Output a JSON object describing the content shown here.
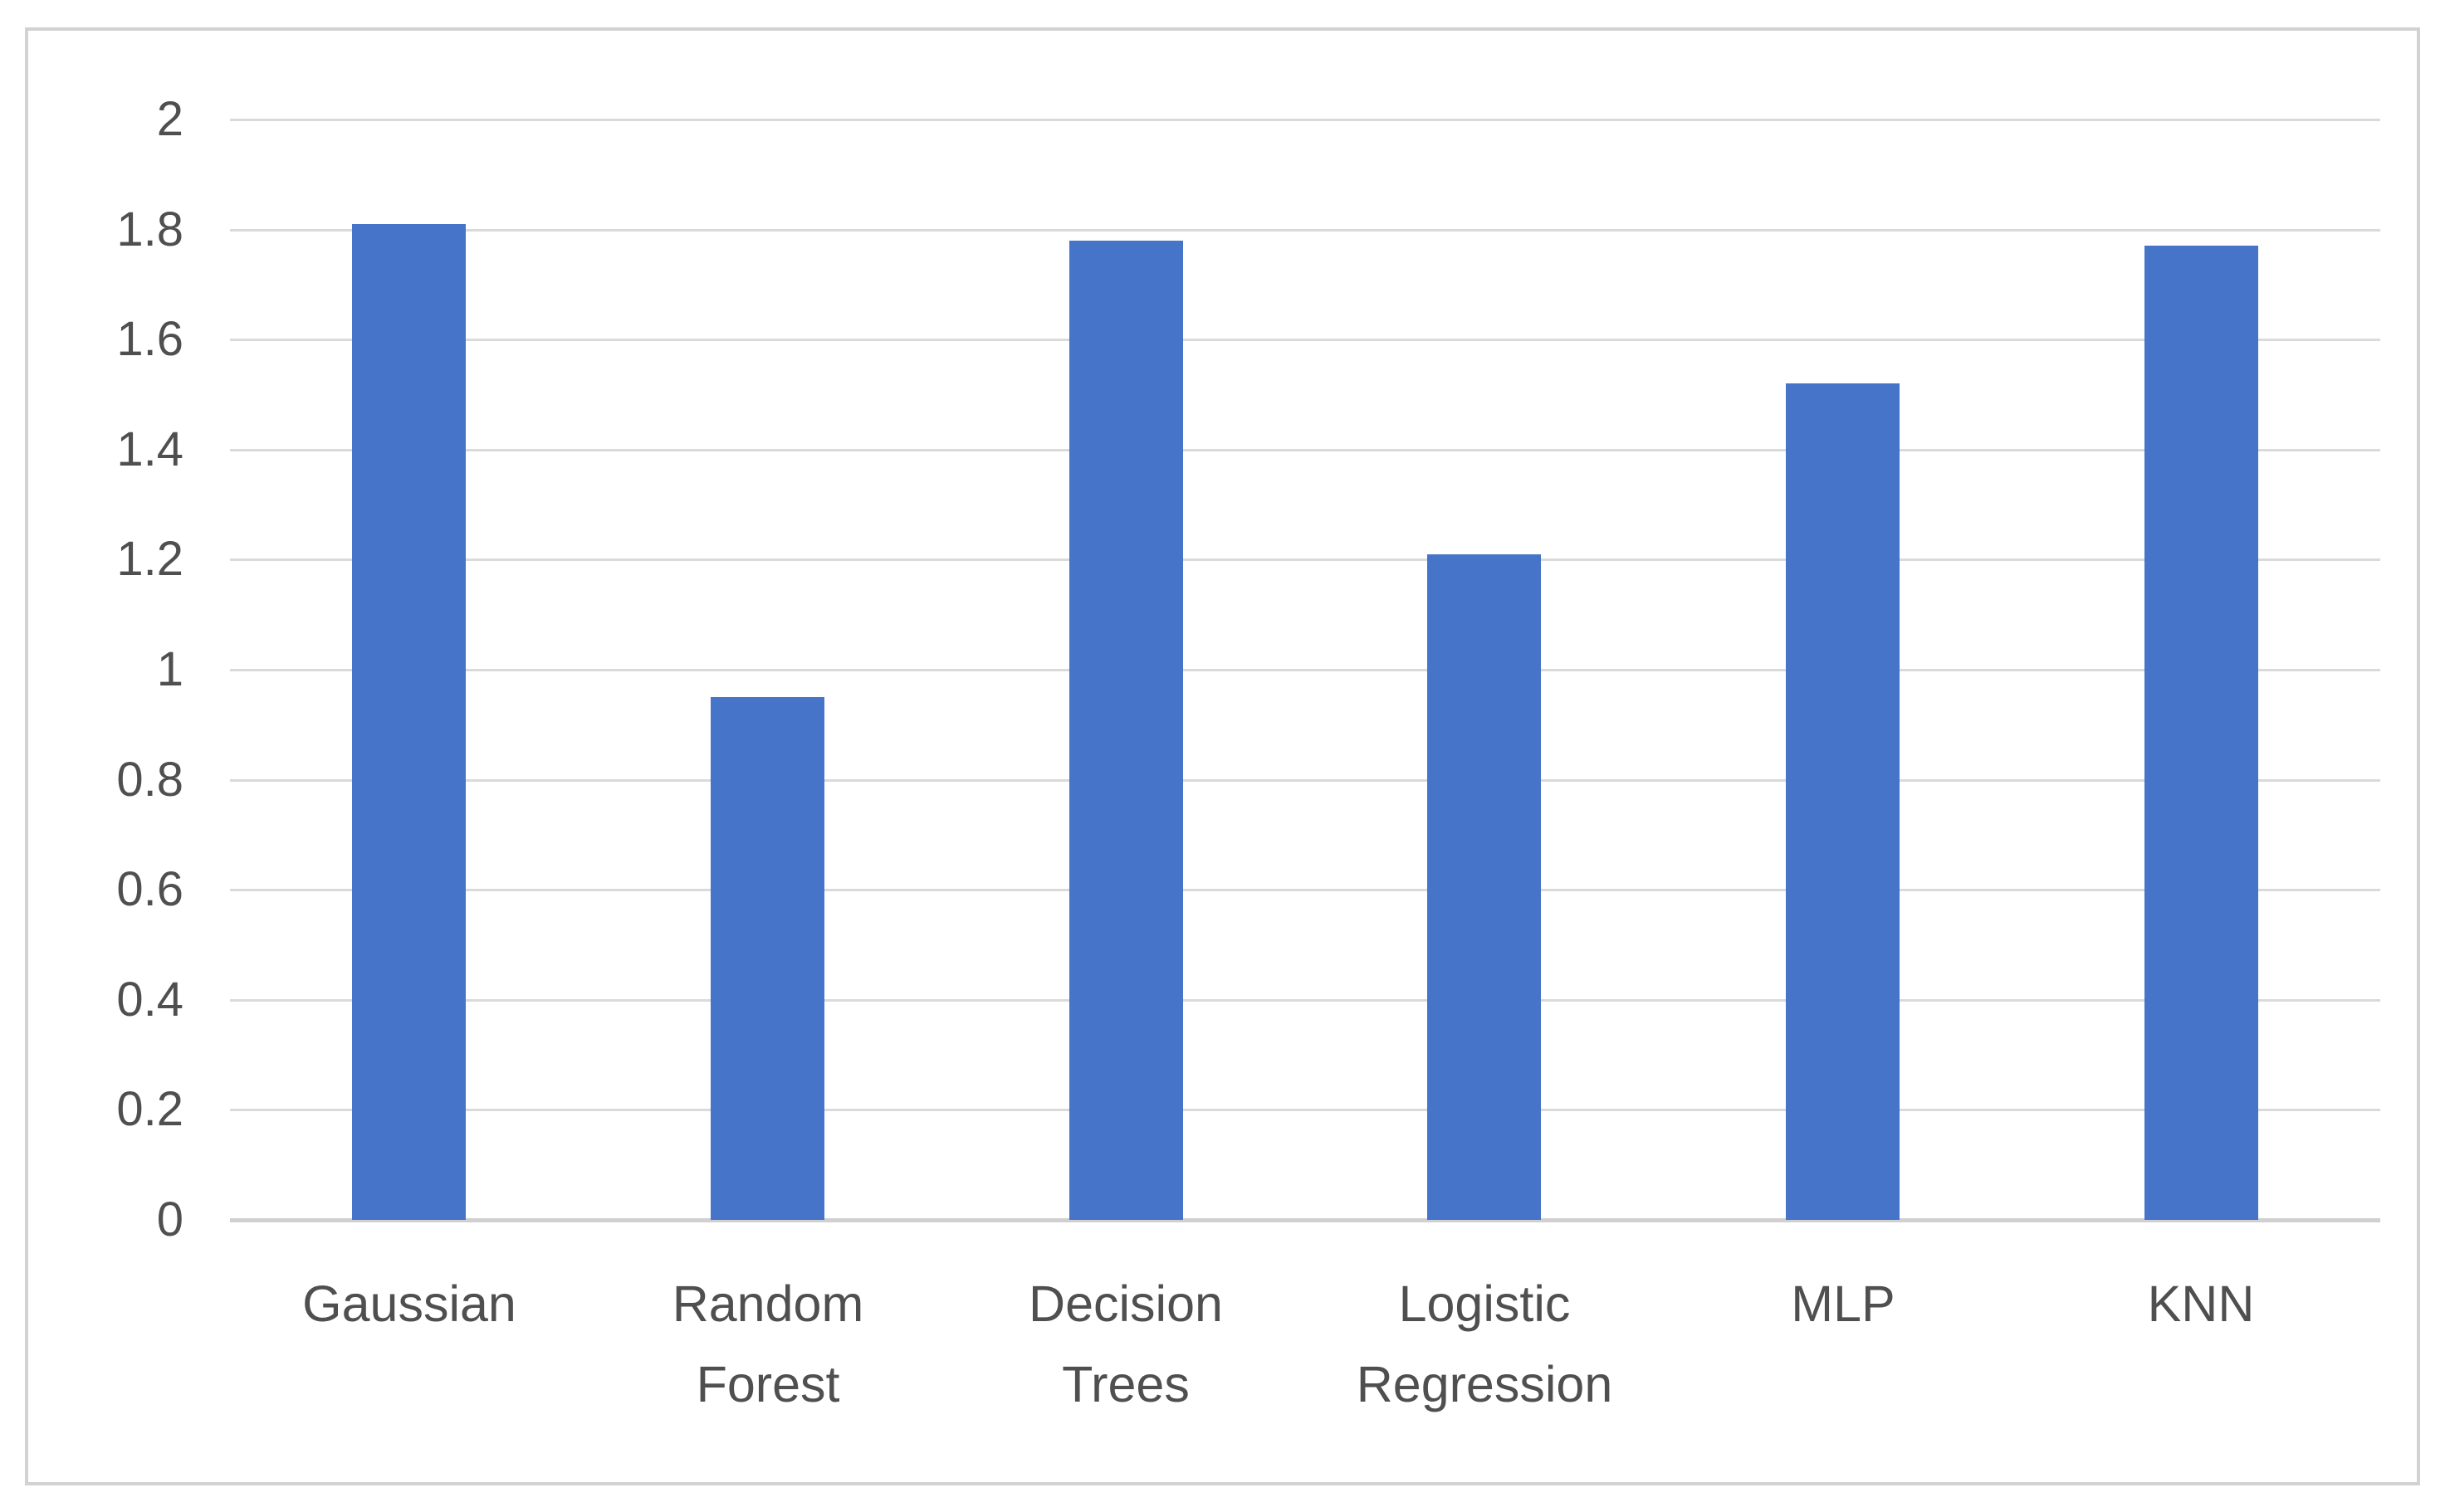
{
  "chart_data": {
    "type": "bar",
    "categories": [
      "Gaussian",
      "Random Forest",
      "Decision Trees",
      "Logistic Regression",
      "MLP",
      "KNN"
    ],
    "values": [
      1.81,
      0.95,
      1.78,
      1.21,
      1.52,
      1.77
    ],
    "title": "",
    "xlabel": "",
    "ylabel": "",
    "ylim": [
      0,
      2
    ],
    "ytick_step": 0.2,
    "ytick_labels": [
      "0",
      "0.2",
      "0.4",
      "0.6",
      "0.8",
      "1",
      "1.2",
      "1.4",
      "1.6",
      "1.8",
      "2"
    ],
    "grid": true,
    "legend_position": "none",
    "colors": {
      "bar": "#4574C9",
      "gridline": "#DADADA",
      "axis_line": "#D0D0D0",
      "tick_text": "#4F4F4F",
      "chart_border": "#D2D2D2",
      "background": "#FFFFFF"
    }
  }
}
